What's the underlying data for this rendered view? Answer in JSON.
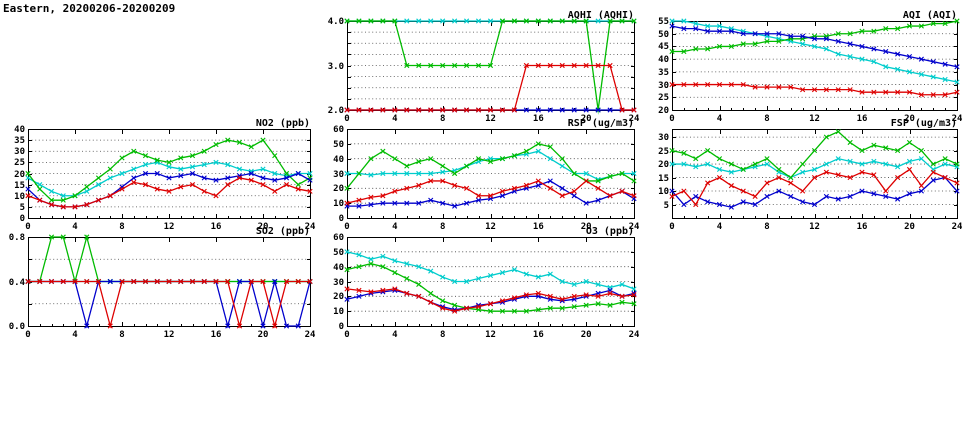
{
  "title": "Eastern, 20200206-20200209",
  "colors": {
    "red": "#dd0000",
    "green": "#00bb00",
    "blue": "#0000cc",
    "cyan": "#00cccc",
    "axis": "#000000",
    "grid": "#444444"
  },
  "chart_data": [
    {
      "id": "aqhi",
      "type": "line",
      "title": "AQHI (AQHI)",
      "xlim": [
        0,
        24
      ],
      "x_step": 1,
      "xticks": [
        0,
        4,
        8,
        12,
        16,
        20,
        24
      ],
      "ylim": [
        2,
        4
      ],
      "yticks": [
        2,
        2.25,
        2.5,
        2.75,
        3,
        3.25,
        3.5,
        3.75,
        4
      ],
      "ytick_labels": [
        "2.0",
        "",
        "",
        "",
        "3.0",
        "",
        "",
        "",
        "4.0"
      ],
      "grid": true,
      "legend": "none",
      "series": [
        {
          "name": "cyan",
          "color": "#00cccc",
          "marker": "x",
          "values": [
            4,
            4,
            4,
            4,
            4,
            4,
            4,
            4,
            4,
            4,
            4,
            4,
            4,
            4,
            4,
            4,
            4,
            4,
            4,
            4,
            4,
            4,
            4,
            4,
            4
          ]
        },
        {
          "name": "green",
          "color": "#00bb00",
          "marker": "x",
          "values": [
            4,
            4,
            4,
            4,
            4,
            3,
            3,
            3,
            3,
            3,
            3,
            3,
            3,
            4,
            4,
            4,
            4,
            4,
            4,
            4,
            4,
            2,
            4,
            4,
            4
          ]
        },
        {
          "name": "blue",
          "color": "#0000cc",
          "marker": "x",
          "values": [
            2,
            2,
            2,
            2,
            2,
            2,
            2,
            2,
            2,
            2,
            2,
            2,
            2,
            2,
            2,
            2,
            2,
            2,
            2,
            2,
            2,
            2,
            2,
            2,
            2
          ]
        },
        {
          "name": "red",
          "color": "#dd0000",
          "marker": "x",
          "values": [
            2,
            2,
            2,
            2,
            2,
            2,
            2,
            2,
            2,
            2,
            2,
            2,
            2,
            2,
            2,
            3,
            3,
            3,
            3,
            3,
            3,
            3,
            3,
            2,
            2
          ]
        }
      ]
    },
    {
      "id": "aqi",
      "type": "line",
      "title": "AQI (AQI)",
      "xlim": [
        0,
        24
      ],
      "x_step": 1,
      "xticks": [
        0,
        4,
        8,
        12,
        16,
        20,
        24
      ],
      "ylim": [
        20,
        55
      ],
      "yticks": [
        20,
        25,
        30,
        35,
        40,
        45,
        50,
        55
      ],
      "ytick_labels": [
        "20",
        "25",
        "30",
        "35",
        "40",
        "45",
        "50",
        "55"
      ],
      "grid": true,
      "legend": "none",
      "series": [
        {
          "name": "cyan",
          "color": "#00cccc",
          "marker": "x",
          "values": [
            55,
            55,
            54,
            53,
            53,
            52,
            51,
            50,
            49,
            48,
            47,
            46,
            45,
            44,
            42,
            41,
            40,
            39,
            37,
            36,
            35,
            34,
            33,
            32,
            31
          ]
        },
        {
          "name": "green",
          "color": "#00bb00",
          "marker": "x",
          "values": [
            43,
            43,
            44,
            44,
            45,
            45,
            46,
            46,
            47,
            47,
            48,
            48,
            49,
            49,
            50,
            50,
            51,
            51,
            52,
            52,
            53,
            53,
            54,
            54,
            55
          ]
        },
        {
          "name": "blue",
          "color": "#0000cc",
          "marker": "x",
          "values": [
            53,
            52,
            52,
            51,
            51,
            51,
            50,
            50,
            50,
            50,
            49,
            49,
            48,
            48,
            47,
            46,
            45,
            44,
            43,
            42,
            41,
            40,
            39,
            38,
            37
          ]
        },
        {
          "name": "red",
          "color": "#dd0000",
          "marker": "x",
          "values": [
            30,
            30,
            30,
            30,
            30,
            30,
            30,
            29,
            29,
            29,
            29,
            28,
            28,
            28,
            28,
            28,
            27,
            27,
            27,
            27,
            27,
            26,
            26,
            26,
            27
          ]
        }
      ]
    },
    {
      "id": "no2",
      "type": "line",
      "title": "NO2 (ppb)",
      "xlim": [
        0,
        24
      ],
      "x_step": 1,
      "xticks": [
        0,
        4,
        8,
        12,
        16,
        20,
        24
      ],
      "ylim": [
        0,
        40
      ],
      "yticks": [
        0,
        5,
        10,
        15,
        20,
        25,
        30,
        35,
        40
      ],
      "ytick_labels": [
        "0",
        "5",
        "10",
        "15",
        "20",
        "25",
        "30",
        "35",
        "40"
      ],
      "grid": true,
      "legend": "none",
      "series": [
        {
          "name": "cyan",
          "color": "#00cccc",
          "marker": "x",
          "values": [
            18,
            15,
            12,
            10,
            10,
            12,
            15,
            18,
            20,
            22,
            24,
            25,
            23,
            22,
            23,
            24,
            25,
            24,
            22,
            21,
            22,
            20,
            19,
            20,
            20
          ]
        },
        {
          "name": "green",
          "color": "#00bb00",
          "marker": "x",
          "values": [
            20,
            13,
            8,
            8,
            10,
            14,
            18,
            22,
            27,
            30,
            28,
            26,
            25,
            27,
            28,
            30,
            33,
            35,
            34,
            32,
            35,
            28,
            20,
            15,
            18
          ]
        },
        {
          "name": "blue",
          "color": "#0000cc",
          "marker": "x",
          "values": [
            13,
            8,
            6,
            5,
            5,
            6,
            8,
            10,
            14,
            18,
            20,
            20,
            18,
            19,
            20,
            18,
            17,
            18,
            19,
            20,
            18,
            17,
            18,
            20,
            17
          ]
        },
        {
          "name": "red",
          "color": "#dd0000",
          "marker": "x",
          "values": [
            10,
            8,
            6,
            5,
            5,
            6,
            8,
            10,
            13,
            16,
            15,
            13,
            12,
            14,
            15,
            12,
            10,
            15,
            18,
            17,
            15,
            12,
            15,
            13,
            12
          ]
        }
      ]
    },
    {
      "id": "rsp",
      "type": "line",
      "title": "RSP (ug/m3)",
      "xlim": [
        0,
        24
      ],
      "x_step": 1,
      "xticks": [
        0,
        4,
        8,
        12,
        16,
        20,
        24
      ],
      "ylim": [
        0,
        60
      ],
      "yticks": [
        0,
        10,
        20,
        30,
        40,
        50,
        60
      ],
      "ytick_labels": [
        "0",
        "10",
        "20",
        "30",
        "40",
        "50",
        "60"
      ],
      "grid": true,
      "legend": "none",
      "series": [
        {
          "name": "cyan",
          "color": "#00cccc",
          "marker": "x",
          "values": [
            30,
            30,
            29,
            30,
            30,
            30,
            30,
            30,
            31,
            32,
            35,
            38,
            40,
            40,
            42,
            43,
            45,
            40,
            35,
            30,
            30,
            26,
            28,
            30,
            30
          ]
        },
        {
          "name": "green",
          "color": "#00bb00",
          "marker": "x",
          "values": [
            20,
            30,
            40,
            45,
            40,
            35,
            38,
            40,
            35,
            30,
            35,
            40,
            38,
            40,
            42,
            45,
            50,
            48,
            40,
            30,
            25,
            25,
            28,
            30,
            25
          ]
        },
        {
          "name": "blue",
          "color": "#0000cc",
          "marker": "x",
          "values": [
            8,
            8,
            9,
            10,
            10,
            10,
            10,
            12,
            10,
            8,
            10,
            12,
            13,
            15,
            18,
            20,
            22,
            25,
            20,
            15,
            10,
            12,
            15,
            18,
            13
          ]
        },
        {
          "name": "red",
          "color": "#dd0000",
          "marker": "x",
          "values": [
            10,
            12,
            14,
            15,
            18,
            20,
            22,
            25,
            25,
            22,
            20,
            15,
            15,
            18,
            20,
            22,
            25,
            20,
            15,
            18,
            25,
            20,
            15,
            18,
            15
          ]
        }
      ]
    },
    {
      "id": "fsp",
      "type": "line",
      "title": "FSP (ug/m3)",
      "xlim": [
        0,
        24
      ],
      "x_step": 1,
      "xticks": [
        0,
        4,
        8,
        12,
        16,
        20,
        24
      ],
      "ylim": [
        0,
        33
      ],
      "yticks": [
        5,
        10,
        15,
        20,
        25,
        30
      ],
      "ytick_labels": [
        "5",
        "10",
        "15",
        "20",
        "25",
        "30"
      ],
      "grid": true,
      "legend": "none",
      "series": [
        {
          "name": "cyan",
          "color": "#00cccc",
          "marker": "x",
          "values": [
            20,
            20,
            19,
            20,
            18,
            17,
            18,
            19,
            20,
            17,
            15,
            17,
            18,
            20,
            22,
            21,
            20,
            21,
            20,
            19,
            21,
            22,
            18,
            20,
            19
          ]
        },
        {
          "name": "green",
          "color": "#00bb00",
          "marker": "x",
          "values": [
            25,
            24,
            22,
            25,
            22,
            20,
            18,
            20,
            22,
            18,
            15,
            20,
            25,
            30,
            32,
            28,
            25,
            27,
            26,
            25,
            28,
            25,
            20,
            22,
            20
          ]
        },
        {
          "name": "blue",
          "color": "#0000cc",
          "marker": "x",
          "values": [
            10,
            5,
            8,
            6,
            5,
            4,
            6,
            5,
            8,
            10,
            8,
            6,
            5,
            8,
            7,
            8,
            10,
            9,
            8,
            7,
            9,
            10,
            14,
            15,
            10
          ]
        },
        {
          "name": "red",
          "color": "#dd0000",
          "marker": "x",
          "values": [
            8,
            10,
            5,
            13,
            15,
            12,
            10,
            8,
            13,
            15,
            13,
            10,
            15,
            17,
            16,
            15,
            17,
            16,
            10,
            15,
            18,
            12,
            17,
            15,
            13
          ]
        }
      ]
    },
    {
      "id": "so2",
      "type": "line",
      "title": "SO2 (ppb)",
      "xlim": [
        0,
        24
      ],
      "x_step": 1,
      "xticks": [
        0,
        4,
        8,
        12,
        16,
        20,
        24
      ],
      "ylim": [
        0,
        0.8
      ],
      "yticks": [
        0,
        0.2,
        0.4,
        0.6,
        0.8
      ],
      "ytick_labels": [
        "0.0",
        "",
        "0.4",
        "",
        "0.8"
      ],
      "grid": true,
      "legend": "none",
      "series": [
        {
          "name": "cyan",
          "color": "#00cccc",
          "marker": "x",
          "values": [
            0.4,
            0.4,
            0.4,
            0.4,
            0.4,
            0.4,
            0.4,
            0.4,
            0.4,
            0.4,
            0.4,
            0.4,
            0.4,
            0.4,
            0.4,
            0.4,
            0.4,
            0.4,
            0.4,
            0.4,
            0.4,
            0.4,
            0.4,
            0.4,
            0.4
          ]
        },
        {
          "name": "green",
          "color": "#00bb00",
          "marker": "x",
          "values": [
            0.4,
            0.4,
            0.8,
            0.8,
            0.4,
            0.8,
            0.4,
            0.4,
            0.4,
            0.4,
            0.4,
            0.4,
            0.4,
            0.4,
            0.4,
            0.4,
            0.4,
            0.4,
            0.4,
            0.4,
            0.4,
            0.4,
            0.4,
            0.4,
            0.4
          ]
        },
        {
          "name": "blue",
          "color": "#0000cc",
          "marker": "x",
          "values": [
            0.4,
            0.4,
            0.4,
            0.4,
            0.4,
            0,
            0.4,
            0.4,
            0.4,
            0.4,
            0.4,
            0.4,
            0.4,
            0.4,
            0.4,
            0.4,
            0.4,
            0,
            0.4,
            0.4,
            0,
            0.4,
            0,
            0,
            0.4
          ]
        },
        {
          "name": "red",
          "color": "#dd0000",
          "marker": "x",
          "values": [
            0.4,
            0.4,
            0.4,
            0.4,
            0.4,
            0.4,
            0.4,
            0,
            0.4,
            0.4,
            0.4,
            0.4,
            0.4,
            0.4,
            0.4,
            0.4,
            0.4,
            0.4,
            0,
            0.4,
            0.4,
            0,
            0.4,
            0.4,
            0.4
          ]
        }
      ]
    },
    {
      "id": "o3",
      "type": "line",
      "title": "O3 (ppb)",
      "xlim": [
        0,
        24
      ],
      "x_step": 1,
      "xticks": [
        0,
        4,
        8,
        12,
        16,
        20,
        24
      ],
      "ylim": [
        0,
        60
      ],
      "yticks": [
        0,
        10,
        20,
        30,
        40,
        50,
        60
      ],
      "ytick_labels": [
        "0",
        "10",
        "20",
        "30",
        "40",
        "50",
        "60"
      ],
      "grid": true,
      "legend": "none",
      "series": [
        {
          "name": "cyan",
          "color": "#00cccc",
          "marker": "x",
          "values": [
            50,
            48,
            45,
            47,
            44,
            42,
            40,
            37,
            33,
            30,
            30,
            32,
            34,
            36,
            38,
            35,
            33,
            35,
            30,
            28,
            30,
            28,
            26,
            28,
            25
          ]
        },
        {
          "name": "green",
          "color": "#00bb00",
          "marker": "x",
          "values": [
            38,
            40,
            42,
            40,
            36,
            32,
            28,
            22,
            17,
            14,
            12,
            11,
            10,
            10,
            10,
            10,
            11,
            12,
            12,
            13,
            14,
            15,
            14,
            16,
            15
          ]
        },
        {
          "name": "blue",
          "color": "#0000cc",
          "marker": "x",
          "values": [
            18,
            20,
            22,
            23,
            24,
            22,
            20,
            16,
            13,
            11,
            12,
            14,
            15,
            16,
            18,
            20,
            20,
            18,
            17,
            18,
            20,
            22,
            24,
            20,
            22
          ]
        },
        {
          "name": "red",
          "color": "#dd0000",
          "marker": "x",
          "values": [
            25,
            24,
            23,
            24,
            25,
            22,
            20,
            16,
            12,
            10,
            12,
            13,
            15,
            17,
            19,
            21,
            22,
            20,
            18,
            20,
            21,
            20,
            22,
            20,
            21
          ]
        }
      ]
    }
  ]
}
